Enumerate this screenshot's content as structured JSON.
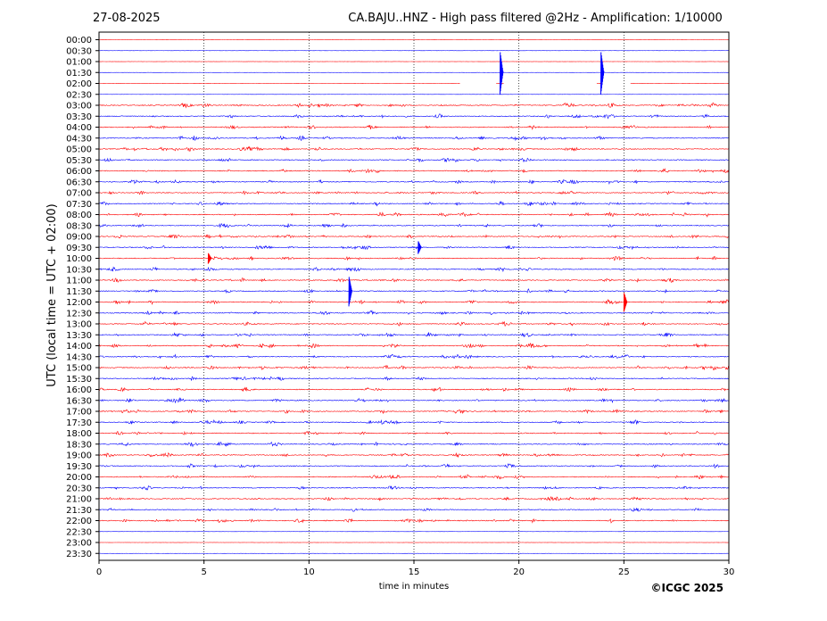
{
  "date": "27-08-2025",
  "title": "CA.BAJU..HNZ - High pass filtered @2Hz - Amplification: 1/10000",
  "copyright": "©ICGC 2025",
  "chart_data": {
    "type": "line",
    "subtype": "helicorder",
    "xlabel": "time in minutes",
    "ylabel": "UTC (local time = UTC + 02:00)",
    "xlim": [
      0,
      30
    ],
    "x_ticks": [
      "0",
      "5",
      "10",
      "15",
      "20",
      "25",
      "30"
    ],
    "x_tick_values": [
      0,
      5,
      10,
      15,
      20,
      25,
      30
    ],
    "grid": "vertical dotted lines at 5, 10, 15, 20, 25",
    "row_labels": [
      "00:00",
      "00:30",
      "01:00",
      "01:30",
      "02:00",
      "02:30",
      "03:00",
      "03:30",
      "04:00",
      "04:30",
      "05:00",
      "05:30",
      "06:00",
      "06:30",
      "07:00",
      "07:30",
      "08:00",
      "08:30",
      "09:00",
      "09:30",
      "10:00",
      "10:30",
      "11:00",
      "11:30",
      "12:00",
      "12:30",
      "13:00",
      "13:30",
      "14:00",
      "14:30",
      "15:00",
      "15:30",
      "16:00",
      "16:30",
      "17:00",
      "17:30",
      "18:00",
      "18:30",
      "19:00",
      "19:30",
      "20:00",
      "20:30",
      "21:00",
      "21:30",
      "22:00",
      "22:30",
      "23:00",
      "23:30"
    ],
    "row_colors": [
      "#ff0000",
      "#0000ff"
    ],
    "quiet_rows": [
      "00:00",
      "00:30",
      "01:00",
      "01:30",
      "02:00",
      "02:30",
      "22:30",
      "23:00",
      "23:30"
    ],
    "data_gaps": [
      {
        "row": "02:00",
        "from_min": 17.2,
        "to_min": 18.9
      },
      {
        "row": "02:00",
        "from_min": 19.3,
        "to_min": 23.7
      },
      {
        "row": "02:00",
        "from_min": 24.0,
        "to_min": 25.3
      }
    ],
    "events": [
      {
        "row": "01:30",
        "minute": 19.1,
        "amplitude": 2.0
      },
      {
        "row": "01:30",
        "minute": 23.9,
        "amplitude": 2.0
      },
      {
        "row": "09:30",
        "minute": 15.2,
        "amplitude": 0.6
      },
      {
        "row": "10:00",
        "minute": 5.2,
        "amplitude": 0.5
      },
      {
        "row": "11:30",
        "minute": 11.9,
        "amplitude": 1.4
      },
      {
        "row": "12:00",
        "minute": 25.0,
        "amplitude": 0.9
      }
    ]
  }
}
